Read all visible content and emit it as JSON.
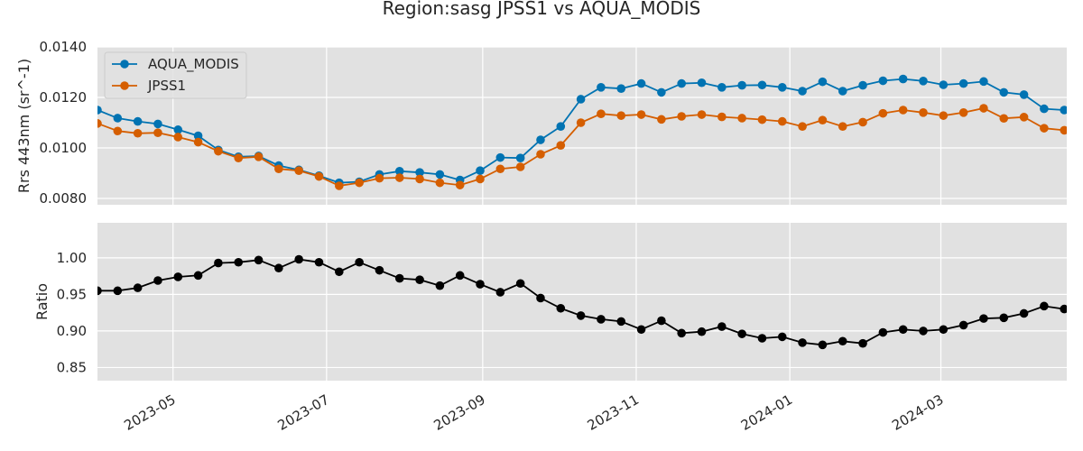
{
  "chart_data": {
    "type": "line",
    "title": "Region:sasg JPSS1 vs AQUA_MODIS",
    "x": [
      "2023-04-01",
      "2023-04-09",
      "2023-04-17",
      "2023-04-25",
      "2023-05-03",
      "2023-05-11",
      "2023-05-19",
      "2023-05-27",
      "2023-06-04",
      "2023-06-12",
      "2023-06-20",
      "2023-06-28",
      "2023-07-06",
      "2023-07-14",
      "2023-07-22",
      "2023-07-30",
      "2023-08-07",
      "2023-08-15",
      "2023-08-23",
      "2023-08-31",
      "2023-09-08",
      "2023-09-16",
      "2023-09-24",
      "2023-10-02",
      "2023-10-10",
      "2023-10-18",
      "2023-10-26",
      "2023-11-03",
      "2023-11-11",
      "2023-11-19",
      "2023-11-27",
      "2023-12-05",
      "2023-12-13",
      "2023-12-21",
      "2023-12-29",
      "2024-01-06",
      "2024-01-14",
      "2024-01-22",
      "2024-01-30",
      "2024-02-07",
      "2024-02-15",
      "2024-02-23",
      "2024-03-02",
      "2024-03-10",
      "2024-03-18",
      "2024-03-26",
      "2024-04-03",
      "2024-04-11",
      "2024-04-19"
    ],
    "xticks": [
      "2023-05",
      "2023-07",
      "2023-09",
      "2023-11",
      "2024-01",
      "2024-03"
    ],
    "xlim": [
      "2023-04-01",
      "2024-04-20"
    ],
    "panels": [
      {
        "ylabel": "Rrs 443nm (sr^-1)",
        "ylim": [
          0.00775,
          0.014
        ],
        "yticks": [
          "0.0080",
          "0.0100",
          "0.0120",
          "0.0140"
        ],
        "legend": "top-left",
        "series": [
          {
            "name": "AQUA_MODIS",
            "color": "#0173b2",
            "values": [
              0.0115,
              0.01118,
              0.01105,
              0.01095,
              0.01072,
              0.01048,
              0.00992,
              0.00965,
              0.00968,
              0.0093,
              0.00913,
              0.0089,
              0.00862,
              0.00866,
              0.00895,
              0.00908,
              0.00903,
              0.00895,
              0.00873,
              0.0091,
              0.00962,
              0.0096,
              0.01032,
              0.01085,
              0.01193,
              0.0124,
              0.01235,
              0.01255,
              0.0122,
              0.01255,
              0.01258,
              0.0124,
              0.01248,
              0.01249,
              0.0124,
              0.01225,
              0.01262,
              0.01225,
              0.01248,
              0.01266,
              0.01273,
              0.01265,
              0.0125,
              0.01255,
              0.01263,
              0.0122,
              0.01211,
              0.01155,
              0.0115
            ]
          },
          {
            "name": "JPSS1",
            "color": "#d55e00",
            "values": [
              0.01097,
              0.01067,
              0.01058,
              0.0106,
              0.01043,
              0.01023,
              0.00987,
              0.0096,
              0.00965,
              0.00917,
              0.0091,
              0.00887,
              0.0085,
              0.00862,
              0.0088,
              0.00882,
              0.00877,
              0.00862,
              0.00853,
              0.00877,
              0.00917,
              0.00925,
              0.00975,
              0.0101,
              0.011,
              0.01135,
              0.01128,
              0.01132,
              0.01113,
              0.01125,
              0.01132,
              0.01123,
              0.01118,
              0.01112,
              0.01105,
              0.01085,
              0.0111,
              0.01085,
              0.01102,
              0.01137,
              0.0115,
              0.0114,
              0.01128,
              0.0114,
              0.01157,
              0.01117,
              0.01122,
              0.01078,
              0.0107
            ]
          }
        ]
      },
      {
        "ylabel": "Ratio",
        "ylim": [
          0.832,
          1.048
        ],
        "yticks": [
          "0.85",
          "0.90",
          "0.95",
          "1.00"
        ],
        "series": [
          {
            "name": "",
            "color": "#000000",
            "values": [
              0.955,
              0.955,
              0.959,
              0.969,
              0.974,
              0.976,
              0.993,
              0.994,
              0.997,
              0.986,
              0.998,
              0.994,
              0.981,
              0.994,
              0.983,
              0.972,
              0.97,
              0.962,
              0.976,
              0.964,
              0.953,
              0.965,
              0.945,
              0.931,
              0.921,
              0.916,
              0.913,
              0.902,
              0.914,
              0.897,
              0.899,
              0.906,
              0.896,
              0.89,
              0.892,
              0.884,
              0.881,
              0.886,
              0.883,
              0.898,
              0.902,
              0.9,
              0.902,
              0.908,
              0.917,
              0.918,
              0.924,
              0.934,
              0.93
            ]
          }
        ]
      }
    ]
  }
}
